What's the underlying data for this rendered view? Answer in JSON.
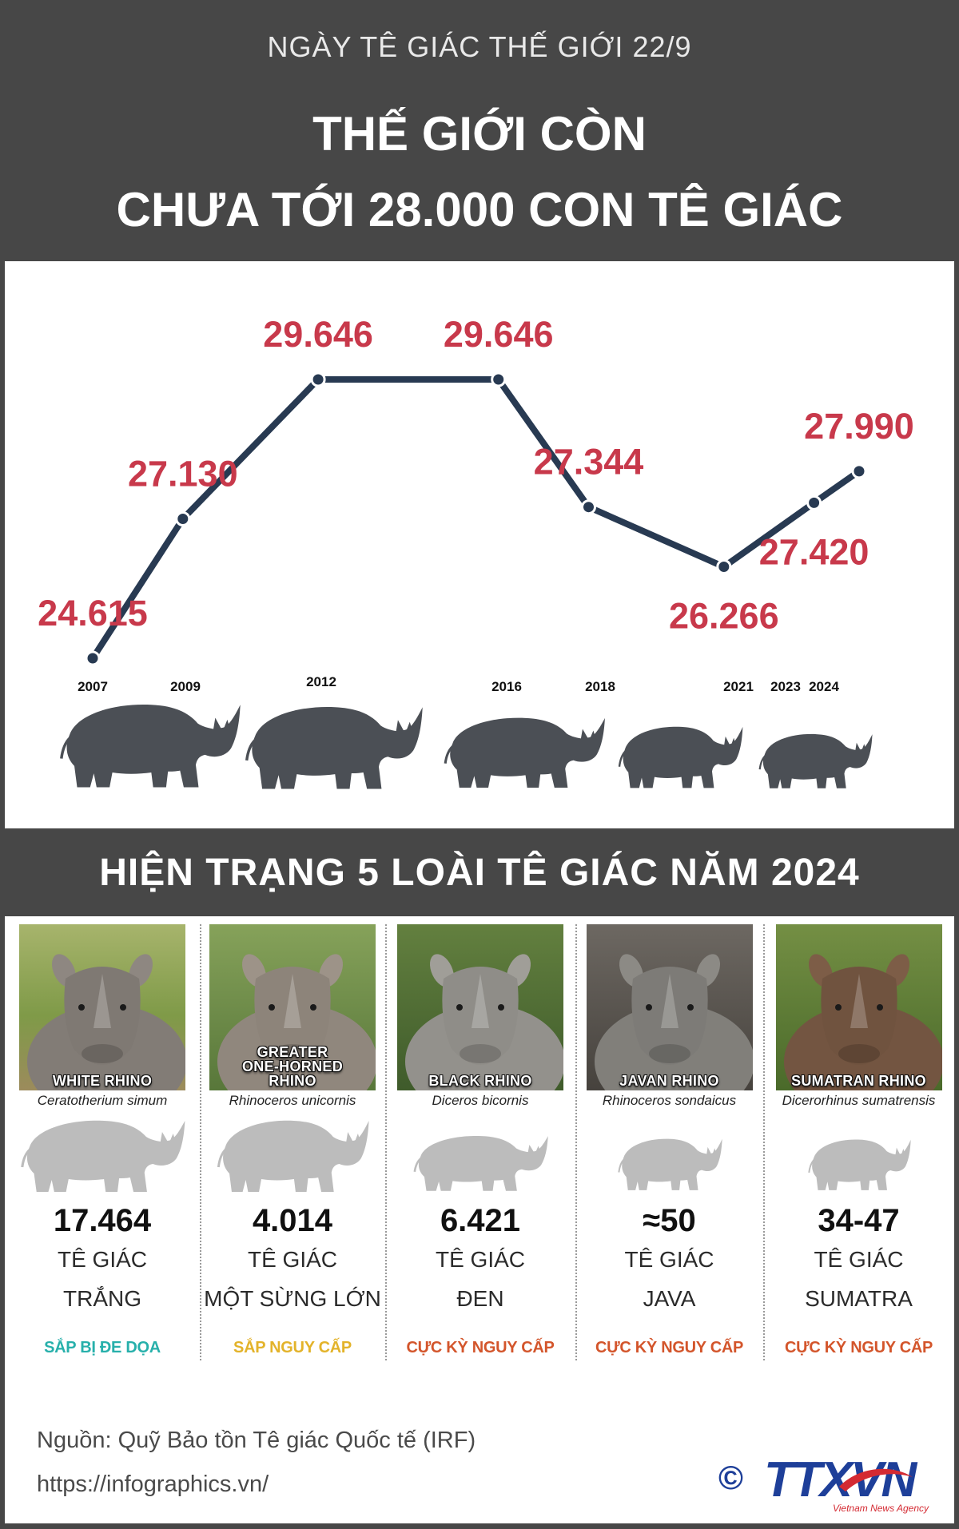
{
  "header": {
    "kicker": "NGÀY TÊ GIÁC THẾ GIỚI 22/9",
    "title_line1": "THẾ GIỚI CÒN",
    "title_line2": "CHƯA TỚI 28.000 CON TÊ GIÁC"
  },
  "chart_data": {
    "type": "line",
    "x": [
      "2007",
      "2009",
      "2012",
      "2016",
      "2018",
      "2021",
      "2023",
      "2024"
    ],
    "series": [
      {
        "values": [
          24615,
          27130,
          29646,
          29646,
          27344,
          26266,
          27420,
          27990
        ],
        "data_labels": [
          "24.615",
          "27.130",
          "29.646",
          "29.646",
          "27.344",
          "26.266",
          "27.420",
          "27.990"
        ]
      }
    ],
    "grid": false,
    "line_color": "#283a52",
    "data_label_color": "#c8394b"
  },
  "section2": {
    "title": "HIỆN TRẠNG 5 LOÀI TÊ GIÁC NĂM 2024"
  },
  "species": [
    {
      "photo_caption": "WHITE RHINO",
      "scientific_name": "Ceratotherium simum",
      "count": "17.464",
      "name_line1": "TÊ GIÁC",
      "name_line2": "TRẮNG",
      "status": "SẮP BỊ ĐE DỌA",
      "status_color": "#27b0ab"
    },
    {
      "photo_caption": "GREATER\nONE-HORNED\nRHINO",
      "scientific_name": "Rhinoceros unicornis",
      "count": "4.014",
      "name_line1": "TÊ GIÁC",
      "name_line2": "MỘT SỪNG LỚN",
      "status": "SẮP NGUY CẤP",
      "status_color": "#e3b32a"
    },
    {
      "photo_caption": "BLACK RHINO",
      "scientific_name": "Diceros bicornis",
      "count": "6.421",
      "name_line1": "TÊ GIÁC",
      "name_line2": "ĐEN",
      "status": "CỰC KỲ NGUY CẤP",
      "status_color": "#d3552b"
    },
    {
      "photo_caption": "JAVAN RHINO",
      "scientific_name": "Rhinoceros sondaicus",
      "count": "≈50",
      "name_line1": "TÊ GIÁC",
      "name_line2": "JAVA",
      "status": "CỰC KỲ NGUY CẤP",
      "status_color": "#d3552b"
    },
    {
      "photo_caption": "SUMATRAN RHINO",
      "scientific_name": "Dicerorhinus sumatrensis",
      "count": "34-47",
      "name_line1": "TÊ GIÁC",
      "name_line2": "SUMATRA",
      "status": "CỰC KỲ NGUY CẤP",
      "status_color": "#d3552b"
    }
  ],
  "footer": {
    "source": "Nguồn: Quỹ Bảo tồn Tê giác Quốc tế (IRF)",
    "url": "https://infographics.vn/",
    "copyright_symbol": "©",
    "logo_text": "TTXVN",
    "logo_tagline": "Vietnam News Agency"
  },
  "colors": {
    "background": "#474747",
    "panel": "#ffffff",
    "title_text": "#ffffff",
    "silhouette_dark": "#4b4f55",
    "silhouette_light": "#bcbcbc",
    "logo_blue": "#1e3f99",
    "logo_red": "#d42a32"
  },
  "icons": {
    "chart_illustration": "rhino-silhouette-icon",
    "species_photo": "rhino-photo",
    "copyright": "copyright-icon",
    "logo_swoosh": "logo-swoosh-icon"
  }
}
